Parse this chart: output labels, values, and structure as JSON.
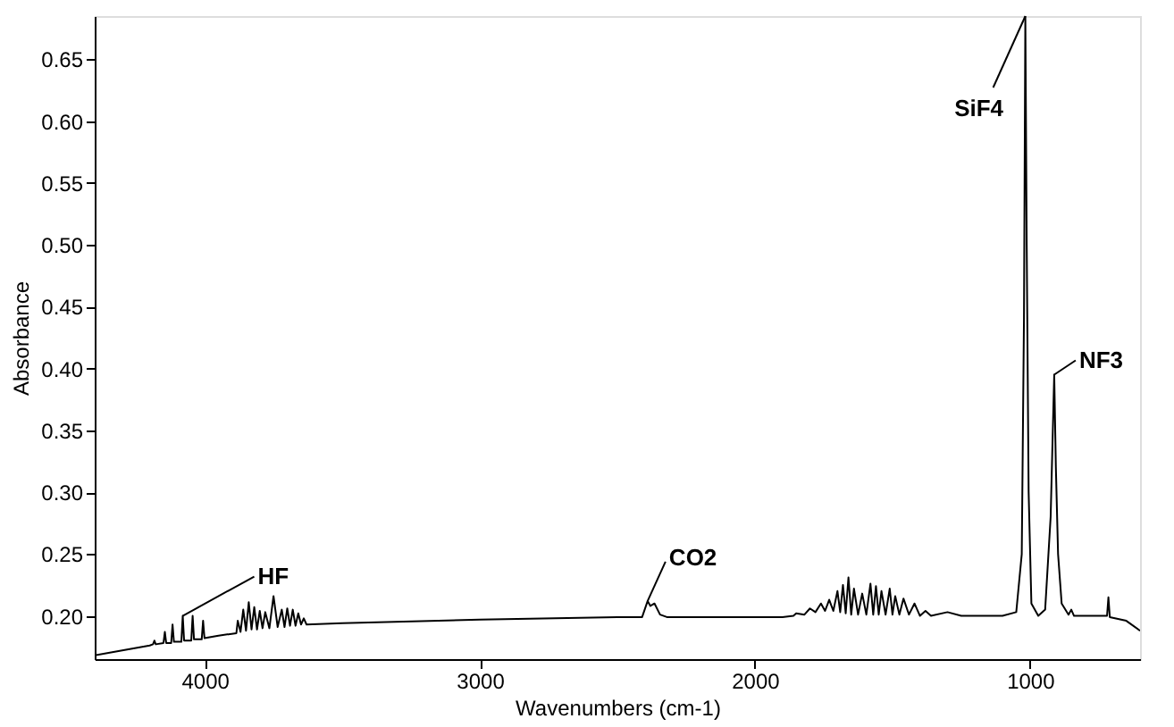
{
  "chart_data": {
    "type": "line",
    "xlabel": "Wavenumbers (cm-1)",
    "ylabel": "Absorbance",
    "xlim": [
      4400,
      600
    ],
    "ylim": [
      0.165,
      0.685
    ],
    "xticks": [
      4000,
      3000,
      2000,
      1000
    ],
    "yticks": [
      {
        "value": 0.2,
        "label": "0.20"
      },
      {
        "value": 0.25,
        "label": "0.25"
      },
      {
        "value": 0.3,
        "label": "0.30"
      },
      {
        "value": 0.35,
        "label": "0.35"
      },
      {
        "value": 0.4,
        "label": "0.40"
      },
      {
        "value": 0.45,
        "label": "0.45"
      },
      {
        "value": 0.5,
        "label": "0.50"
      },
      {
        "value": 0.55,
        "label": "0.55"
      },
      {
        "value": 0.6,
        "label": "0.60"
      },
      {
        "value": 0.65,
        "label": "0.65"
      }
    ],
    "grid": false,
    "marker": "none",
    "line_style": "solid",
    "annotations": [
      {
        "text": "HF",
        "x": 4080,
        "y": 0.2
      },
      {
        "text": "CO2",
        "x": 2390,
        "y": 0.212
      },
      {
        "text": "SiF4",
        "x": 1017,
        "y": 0.685
      },
      {
        "text": "NF3",
        "x": 912,
        "y": 0.395
      }
    ],
    "series": [
      {
        "color": "#000000",
        "x": [
          4400,
          4300,
          4200,
          4188,
          4183,
          4178,
          4150,
          4145,
          4140,
          4122,
          4117,
          4112,
          4085,
          4080,
          4075,
          4049,
          4044,
          4039,
          4011,
          4006,
          4001,
          3950,
          3885,
          3880,
          3870,
          3860,
          3850,
          3840,
          3830,
          3820,
          3810,
          3800,
          3790,
          3780,
          3765,
          3750,
          3735,
          3720,
          3710,
          3700,
          3690,
          3680,
          3670,
          3660,
          3650,
          3640,
          3630,
          3500,
          3000,
          2500,
          2410,
          2390,
          2380,
          2365,
          2345,
          2320,
          2000,
          1900,
          1860,
          1850,
          1820,
          1800,
          1780,
          1760,
          1745,
          1730,
          1715,
          1700,
          1690,
          1680,
          1670,
          1660,
          1650,
          1640,
          1625,
          1610,
          1595,
          1580,
          1570,
          1560,
          1550,
          1540,
          1525,
          1510,
          1500,
          1490,
          1475,
          1460,
          1440,
          1420,
          1400,
          1380,
          1360,
          1300,
          1250,
          1100,
          1050,
          1030,
          1022,
          1017,
          1012,
          1005,
          995,
          970,
          945,
          925,
          912,
          906,
          898,
          885,
          860,
          850,
          840,
          720,
          715,
          710,
          650,
          600
        ],
        "values": [
          0.168,
          0.172,
          0.176,
          0.177,
          0.18,
          0.177,
          0.178,
          0.187,
          0.178,
          0.178,
          0.193,
          0.179,
          0.179,
          0.2,
          0.18,
          0.18,
          0.2,
          0.181,
          0.181,
          0.196,
          0.182,
          0.184,
          0.186,
          0.196,
          0.187,
          0.205,
          0.188,
          0.211,
          0.189,
          0.207,
          0.189,
          0.204,
          0.19,
          0.203,
          0.19,
          0.216,
          0.191,
          0.205,
          0.191,
          0.206,
          0.192,
          0.205,
          0.192,
          0.202,
          0.193,
          0.198,
          0.193,
          0.194,
          0.197,
          0.199,
          0.199,
          0.212,
          0.208,
          0.21,
          0.201,
          0.199,
          0.199,
          0.199,
          0.2,
          0.202,
          0.201,
          0.206,
          0.203,
          0.21,
          0.204,
          0.213,
          0.204,
          0.22,
          0.203,
          0.225,
          0.202,
          0.231,
          0.201,
          0.222,
          0.201,
          0.218,
          0.201,
          0.226,
          0.201,
          0.224,
          0.201,
          0.22,
          0.201,
          0.222,
          0.201,
          0.216,
          0.201,
          0.214,
          0.201,
          0.21,
          0.2,
          0.204,
          0.2,
          0.203,
          0.2,
          0.2,
          0.203,
          0.25,
          0.44,
          0.685,
          0.5,
          0.3,
          0.21,
          0.2,
          0.205,
          0.28,
          0.395,
          0.32,
          0.25,
          0.21,
          0.201,
          0.205,
          0.2,
          0.2,
          0.215,
          0.199,
          0.196,
          0.188
        ]
      }
    ]
  }
}
